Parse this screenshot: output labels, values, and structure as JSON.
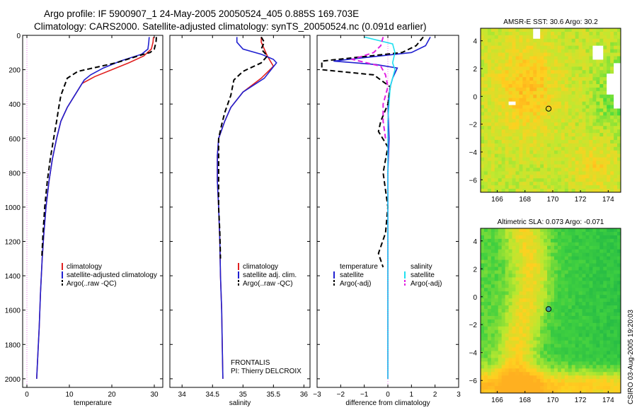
{
  "header": {
    "line1": "Argo profile: IF 5900907_1 24-May-2005 20050524_405 0.885S 169.703E",
    "line2": "Climatology: CARS2000. Satellite-adjusted climatology: synTS_20050524.nc (0.091d earlier)"
  },
  "credit": "CSIRO 03-Aug-2005 19:20:03",
  "colors": {
    "climatology": "#e02020",
    "satellite": "#2020d0",
    "argo": "#000000",
    "salinity_satellite": "#20e0f0",
    "salinity_argo": "#e020e0",
    "missing": "#ffffff"
  },
  "chart_data": [
    {
      "type": "line",
      "xlabel": "temperature",
      "ylabel": "",
      "xlim": [
        -1,
        32
      ],
      "ylim": [
        2050,
        0
      ],
      "x_ticks": [
        0,
        10,
        20,
        30
      ],
      "y_ticks": [
        0,
        200,
        400,
        600,
        800,
        1000,
        1200,
        1400,
        1600,
        1800,
        2000
      ],
      "legend": [
        "climatology",
        "satellite-adjusted climatology",
        "Argo(..raw -QC)"
      ],
      "series": [
        {
          "name": "climatology",
          "style": "solid",
          "color": "#e02020",
          "points": [
            [
              29.8,
              10
            ],
            [
              29.7,
              40
            ],
            [
              29.3,
              80
            ],
            [
              27.5,
              120
            ],
            [
              24,
              160
            ],
            [
              20,
              200
            ],
            [
              16,
              240
            ],
            [
              13,
              280
            ],
            [
              11.5,
              340
            ],
            [
              9.5,
              420
            ],
            [
              8,
              500
            ],
            [
              7,
              600
            ],
            [
              6,
              720
            ],
            [
              5.2,
              850
            ],
            [
              4.5,
              1000
            ],
            [
              4,
              1150
            ],
            [
              3.6,
              1300
            ],
            [
              3.2,
              1500
            ],
            [
              2.9,
              1700
            ],
            [
              2.6,
              1850
            ],
            [
              2.3,
              2000
            ]
          ]
        },
        {
          "name": "satellite-adjusted climatology",
          "style": "solid",
          "color": "#2020d0",
          "points": [
            [
              28.8,
              10
            ],
            [
              28.7,
              40
            ],
            [
              28.5,
              80
            ],
            [
              27,
              110
            ],
            [
              22,
              150
            ],
            [
              18,
              190
            ],
            [
              15,
              230
            ],
            [
              13.5,
              260
            ],
            [
              11.5,
              340
            ],
            [
              9.5,
              420
            ],
            [
              8,
              500
            ],
            [
              7,
              600
            ],
            [
              6,
              720
            ],
            [
              5.2,
              850
            ],
            [
              4.5,
              1000
            ],
            [
              4,
              1150
            ],
            [
              3.6,
              1300
            ],
            [
              3.2,
              1500
            ],
            [
              2.9,
              1700
            ],
            [
              2.6,
              1850
            ],
            [
              2.3,
              2000
            ]
          ]
        },
        {
          "name": "Argo(..raw -QC)",
          "style": "dashed",
          "color": "#000000",
          "points": [
            [
              30.5,
              10
            ],
            [
              30.4,
              40
            ],
            [
              30,
              80
            ],
            [
              29,
              100
            ],
            [
              27.5,
              110
            ],
            [
              21,
              160
            ],
            [
              12,
              210
            ],
            [
              9.5,
              250
            ],
            [
              8,
              350
            ],
            [
              7.5,
              420
            ],
            [
              7,
              500
            ],
            [
              6.3,
              600
            ],
            [
              5.5,
              720
            ],
            [
              4.8,
              850
            ],
            [
              4.2,
              1000
            ],
            [
              3.8,
              1150
            ],
            [
              3.5,
              1300
            ]
          ]
        }
      ]
    },
    {
      "type": "line",
      "xlabel": "salinity",
      "ylabel": "",
      "xlim": [
        33.8,
        36.1
      ],
      "ylim": [
        2050,
        0
      ],
      "x_ticks": [
        34,
        34.5,
        35,
        35.5,
        36
      ],
      "y_ticks": [
        0,
        200,
        400,
        600,
        800,
        1000,
        1200,
        1400,
        1600,
        1800,
        2000
      ],
      "legend": [
        "climatology",
        "satellite adj. clim.",
        "Argo(..raw -QC)"
      ],
      "annotation": [
        "FRONTALIS",
        "PI: Thierry DELCROIX"
      ],
      "series": [
        {
          "name": "climatology",
          "style": "solid",
          "color": "#e02020",
          "points": [
            [
              35.3,
              10
            ],
            [
              35.3,
              40
            ],
            [
              35.35,
              80
            ],
            [
              35.4,
              120
            ],
            [
              35.5,
              180
            ],
            [
              35.3,
              250
            ],
            [
              35,
              330
            ],
            [
              34.8,
              420
            ],
            [
              34.7,
              500
            ],
            [
              34.6,
              600
            ],
            [
              34.58,
              700
            ],
            [
              34.58,
              850
            ],
            [
              34.6,
              1000
            ],
            [
              34.62,
              1200
            ],
            [
              34.63,
              1400
            ],
            [
              34.65,
              1600
            ],
            [
              34.66,
              1800
            ],
            [
              34.67,
              2000
            ]
          ]
        },
        {
          "name": "satellite adj. clim.",
          "style": "solid",
          "color": "#2020d0",
          "points": [
            [
              34.9,
              10
            ],
            [
              34.9,
              40
            ],
            [
              35.0,
              80
            ],
            [
              35.3,
              110
            ],
            [
              35.5,
              140
            ],
            [
              35.55,
              160
            ],
            [
              35.35,
              250
            ],
            [
              35,
              330
            ],
            [
              34.8,
              420
            ],
            [
              34.7,
              500
            ],
            [
              34.6,
              600
            ],
            [
              34.58,
              700
            ],
            [
              34.58,
              850
            ],
            [
              34.6,
              1000
            ],
            [
              34.62,
              1200
            ],
            [
              34.63,
              1400
            ],
            [
              34.65,
              1600
            ],
            [
              34.66,
              1800
            ],
            [
              34.67,
              2000
            ]
          ]
        },
        {
          "name": "Argo(..raw -QC)",
          "style": "dashed",
          "color": "#000000",
          "points": [
            [
              35.3,
              10
            ],
            [
              35.35,
              40
            ],
            [
              35.3,
              80
            ],
            [
              35.4,
              120
            ],
            [
              35.3,
              160
            ],
            [
              35,
              210
            ],
            [
              34.85,
              260
            ],
            [
              34.8,
              350
            ],
            [
              34.7,
              450
            ],
            [
              34.65,
              520
            ],
            [
              34.6,
              600
            ],
            [
              34.6,
              700
            ],
            [
              34.6,
              850
            ],
            [
              34.6,
              1000
            ],
            [
              34.62,
              1150
            ],
            [
              34.63,
              1300
            ]
          ]
        }
      ]
    },
    {
      "type": "line",
      "xlabel": "difference from climatology",
      "ylabel": "",
      "xlim": [
        -3,
        3
      ],
      "ylim": [
        2050,
        0
      ],
      "x_ticks": [
        -3,
        -2,
        -1,
        0,
        1,
        2,
        3
      ],
      "y_ticks": [
        0,
        200,
        400,
        600,
        800,
        1000,
        1200,
        1400,
        1600,
        1800,
        2000
      ],
      "legend": [
        "temperature",
        "satellite",
        "Argo(-adj)",
        "salinity",
        "satellite",
        "Argo(-adj)"
      ],
      "series": [
        {
          "name": "satellite",
          "group": "temperature",
          "style": "solid",
          "color": "#2020d0",
          "points": [
            [
              1.8,
              10
            ],
            [
              1.6,
              60
            ],
            [
              1.0,
              100
            ],
            [
              -1.0,
              130
            ],
            [
              -2.3,
              150
            ],
            [
              -0.5,
              170
            ],
            [
              0.4,
              190
            ],
            [
              0.2,
              250
            ],
            [
              0.1,
              300
            ],
            [
              0,
              400
            ],
            [
              0.05,
              600
            ],
            [
              0,
              800
            ],
            [
              0,
              1000
            ],
            [
              0,
              1200
            ],
            [
              0,
              1400
            ],
            [
              0,
              1600
            ],
            [
              0,
              1800
            ],
            [
              0,
              2000
            ]
          ]
        },
        {
          "name": "Argo(-adj)",
          "group": "temperature",
          "style": "dashed",
          "color": "#000000",
          "points": [
            [
              1.5,
              10
            ],
            [
              1.2,
              60
            ],
            [
              0.6,
              100
            ],
            [
              -2.8,
              150
            ],
            [
              -2.8,
              200
            ],
            [
              -0.6,
              230
            ],
            [
              0.1,
              300
            ],
            [
              0,
              400
            ],
            [
              -0.3,
              500
            ],
            [
              -0.4,
              560
            ],
            [
              0,
              650
            ],
            [
              -0.2,
              800
            ],
            [
              0,
              1000
            ],
            [
              -0.1,
              1150
            ],
            [
              -0.4,
              1270
            ],
            [
              -0.2,
              1350
            ]
          ]
        },
        {
          "name": "satellite",
          "group": "salinity",
          "style": "solid",
          "color": "#20e0f0",
          "points": [
            [
              -1.0,
              10
            ],
            [
              0.2,
              50
            ],
            [
              0.3,
              100
            ],
            [
              0.2,
              160
            ],
            [
              0.3,
              200
            ],
            [
              0.1,
              300
            ],
            [
              0,
              500
            ],
            [
              0,
              800
            ],
            [
              0,
              1200
            ],
            [
              0,
              1600
            ],
            [
              0,
              2000
            ]
          ]
        },
        {
          "name": "Argo(-adj)",
          "group": "salinity",
          "style": "dashed",
          "color": "#e020e0",
          "points": [
            [
              -0.2,
              10
            ],
            [
              -0.3,
              60
            ],
            [
              -0.6,
              100
            ],
            [
              -1.5,
              140
            ],
            [
              -0.3,
              180
            ],
            [
              -0.1,
              230
            ],
            [
              0,
              300
            ],
            [
              -0.2,
              400
            ],
            [
              -0.2,
              500
            ],
            [
              -0.1,
              600
            ]
          ]
        }
      ]
    },
    {
      "type": "heatmap",
      "title": "AMSR-E SST: 30.6 Argo: 30.2",
      "xlim": [
        164.8,
        174.9
      ],
      "ylim": [
        -6.9,
        4.9
      ],
      "x_ticks": [
        166,
        168,
        170,
        172,
        174
      ],
      "y_ticks": [
        -6,
        -4,
        -2,
        0,
        2,
        4
      ],
      "colormap": [
        "#30d840",
        "#c0e830",
        "#ffd020",
        "#ff9018"
      ],
      "marker": {
        "lon": 169.7,
        "lat": -0.885
      },
      "grid_cols": 40,
      "grid_rows": 47
    },
    {
      "type": "heatmap",
      "title": "Altimetric SLA: 0.073 Argo: -0.071",
      "xlim": [
        164.8,
        174.9
      ],
      "ylim": [
        -6.9,
        4.9
      ],
      "x_ticks": [
        166,
        168,
        170,
        172,
        174
      ],
      "y_ticks": [
        -6,
        -4,
        -2,
        0,
        2,
        4
      ],
      "colormap": [
        "#18b048",
        "#40d040",
        "#b8e830",
        "#ffd020",
        "#ffb020"
      ],
      "marker": {
        "lon": 169.7,
        "lat": -0.885
      },
      "grid_cols": 40,
      "grid_rows": 47
    }
  ]
}
